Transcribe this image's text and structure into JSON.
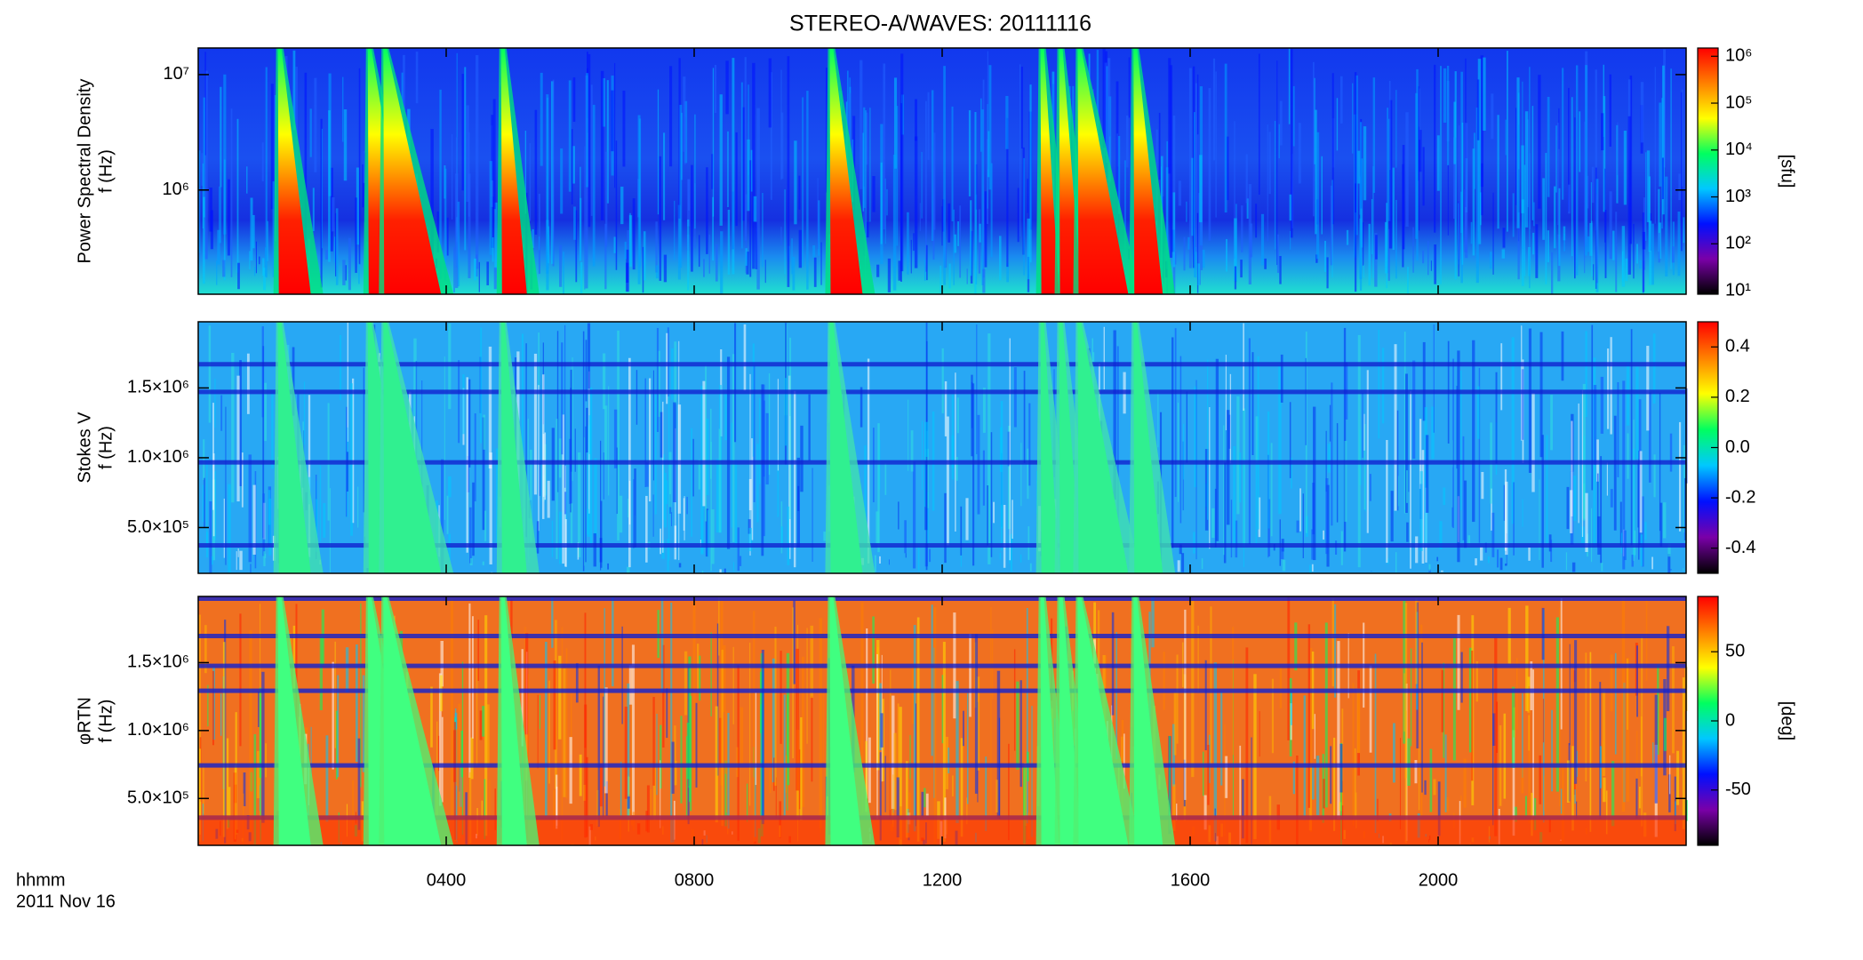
{
  "chart_data": [
    {
      "type": "spectrogram",
      "title": "STEREO-A/WAVES: 20111116",
      "ylabel": [
        "Power Spectral Density",
        "f (Hz)"
      ],
      "xlim": [
        0,
        24
      ],
      "xticks": [
        {
          "value": 4,
          "label": "0400"
        },
        {
          "value": 8,
          "label": "0800"
        },
        {
          "value": 12,
          "label": "1200"
        },
        {
          "value": 16,
          "label": "1600"
        },
        {
          "value": 20,
          "label": "2000"
        }
      ],
      "xtick_labels": false,
      "ylog": true,
      "ylim": [
        125000,
        17000000
      ],
      "yticks": [
        {
          "value": 1000000,
          "label": "10⁶"
        },
        {
          "value": 10000000,
          "label": "10⁷"
        }
      ],
      "clog": true,
      "clim": [
        8.4,
        1500000
      ],
      "cticks": [
        {
          "value": 10,
          "label": "10¹"
        },
        {
          "value": 100,
          "label": "10²"
        },
        {
          "value": 1000,
          "label": "10³"
        },
        {
          "value": 10000,
          "label": "10⁴"
        },
        {
          "value": 100000,
          "label": "10⁵"
        },
        {
          "value": 1000000,
          "label": "10⁶"
        }
      ],
      "clabel": "[sfu]",
      "colormap": [
        "#000000",
        "#7a00a8",
        "#0010ff",
        "#00c8ff",
        "#00ff60",
        "#ffff00",
        "#ff8000",
        "#ff0000"
      ]
    },
    {
      "type": "spectrogram",
      "ylabel": [
        "Stokes V",
        "f (Hz)"
      ],
      "xlim": [
        0,
        24
      ],
      "xticks": [
        {
          "value": 4,
          "label": "0400"
        },
        {
          "value": 8,
          "label": "0800"
        },
        {
          "value": 12,
          "label": "1200"
        },
        {
          "value": 16,
          "label": "1600"
        },
        {
          "value": 20,
          "label": "2000"
        }
      ],
      "xtick_labels": false,
      "ylog": false,
      "ylim": [
        172000,
        1974000
      ],
      "yticks": [
        {
          "value": 500000,
          "label": "5.0×10⁵"
        },
        {
          "value": 1000000,
          "label": "1.0×10⁶"
        },
        {
          "value": 1500000,
          "label": "1.5×10⁶"
        }
      ],
      "clog": false,
      "clim": [
        -0.5,
        0.5
      ],
      "cticks": [
        -0.4,
        -0.2,
        {
          "value": 0,
          "label": "0.0"
        },
        0.2,
        0.4
      ],
      "colormap": [
        "#000000",
        "#7a00a8",
        "#0010ff",
        "#00c8ff",
        "#00ff60",
        "#ffff00",
        "#ff8000",
        "#ff0000"
      ]
    },
    {
      "type": "spectrogram",
      "ylabel": [
        "φRTN",
        "f (Hz)"
      ],
      "xlabel": [
        "hhmm",
        "2011 Nov 16"
      ],
      "xlim": [
        0,
        24
      ],
      "xticks": [
        {
          "value": 4,
          "label": "0400"
        },
        {
          "value": 8,
          "label": "0800"
        },
        {
          "value": 12,
          "label": "1200"
        },
        {
          "value": 16,
          "label": "1600"
        },
        {
          "value": 20,
          "label": "2000"
        }
      ],
      "xtick_labels": true,
      "ylog": false,
      "ylim": [
        155000,
        1987000
      ],
      "yticks": [
        {
          "value": 500000,
          "label": "5.0×10⁵"
        },
        {
          "value": 1000000,
          "label": "1.0×10⁶"
        },
        {
          "value": 1500000,
          "label": "1.5×10⁶"
        }
      ],
      "clog": false,
      "clim": [
        -90,
        90
      ],
      "cticks": [
        -50,
        0,
        50
      ],
      "clabel": "[deg]",
      "colormap": [
        "#000000",
        "#7a00a8",
        "#0010ff",
        "#00c8ff",
        "#00ff60",
        "#ffff00",
        "#ff8000",
        "#ff0000"
      ]
    }
  ]
}
